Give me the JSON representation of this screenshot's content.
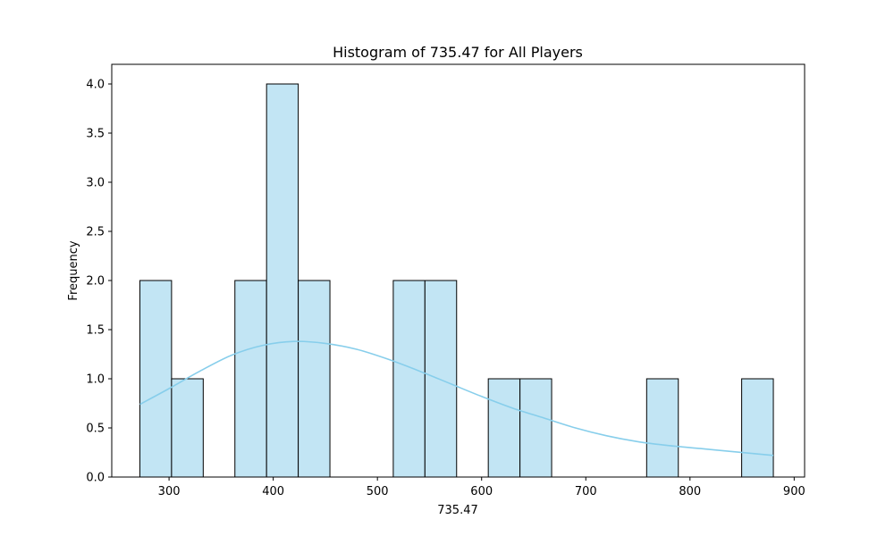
{
  "chart_data": {
    "type": "bar",
    "title": "Histogram of 735.47 for All Players",
    "xlabel": "735.47",
    "ylabel": "Frequency",
    "xlim": [
      245,
      910
    ],
    "ylim": [
      0,
      4.2
    ],
    "x_ticks": [
      300,
      400,
      500,
      600,
      700,
      800,
      900
    ],
    "y_ticks": [
      0.0,
      0.5,
      1.0,
      1.5,
      2.0,
      2.5,
      3.0,
      3.5,
      4.0
    ],
    "y_tick_labels": [
      "0.0",
      "0.5",
      "1.0",
      "1.5",
      "2.0",
      "2.5",
      "3.0",
      "3.5",
      "4.0"
    ],
    "bin_width": 30.4,
    "bins": [
      {
        "start": 272.0,
        "count": 2
      },
      {
        "start": 302.4,
        "count": 1
      },
      {
        "start": 332.8,
        "count": 0
      },
      {
        "start": 363.2,
        "count": 2
      },
      {
        "start": 393.6,
        "count": 4
      },
      {
        "start": 424.0,
        "count": 2
      },
      {
        "start": 454.4,
        "count": 0
      },
      {
        "start": 484.8,
        "count": 0
      },
      {
        "start": 515.2,
        "count": 2
      },
      {
        "start": 545.6,
        "count": 2
      },
      {
        "start": 576.0,
        "count": 0
      },
      {
        "start": 606.4,
        "count": 1
      },
      {
        "start": 636.8,
        "count": 1
      },
      {
        "start": 667.2,
        "count": 0
      },
      {
        "start": 697.6,
        "count": 0
      },
      {
        "start": 728.0,
        "count": 0
      },
      {
        "start": 758.4,
        "count": 1
      },
      {
        "start": 788.8,
        "count": 0
      },
      {
        "start": 819.2,
        "count": 0
      },
      {
        "start": 849.6,
        "count": 1
      }
    ],
    "kde": {
      "x": [
        272,
        300,
        330,
        360,
        390,
        420,
        450,
        480,
        510,
        540,
        570,
        600,
        630,
        660,
        690,
        720,
        750,
        780,
        810,
        840,
        880
      ],
      "y": [
        0.74,
        0.9,
        1.08,
        1.24,
        1.34,
        1.38,
        1.36,
        1.3,
        1.2,
        1.08,
        0.95,
        0.82,
        0.7,
        0.6,
        0.5,
        0.42,
        0.36,
        0.32,
        0.29,
        0.26,
        0.22
      ]
    },
    "colors": {
      "bar_fill": "#c2e5f4",
      "bar_edge": "#000000",
      "kde_line": "#87ceeb"
    },
    "grid": false,
    "legend": "none"
  }
}
